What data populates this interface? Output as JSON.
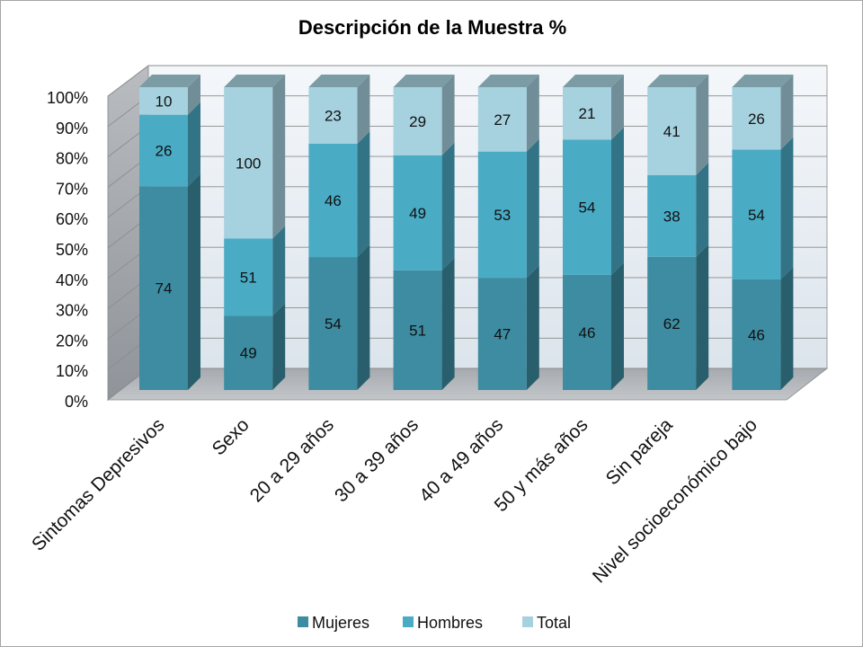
{
  "chart_data": {
    "type": "bar",
    "stacking": "percent",
    "title": "Descripción de la Muestra %",
    "categories": [
      "Sintomas Depresivos",
      "Sexo",
      "20 a 29 años",
      "30 a 39 años",
      "40 a 49 años",
      "50 y más años",
      "Sin pareja",
      "Nivel socioeconómico bajo"
    ],
    "series": [
      {
        "name": "Mujeres",
        "values": [
          74,
          49,
          54,
          51,
          47,
          46,
          62,
          46
        ],
        "color": "#3d8ca1"
      },
      {
        "name": "Hombres",
        "values": [
          26,
          51,
          46,
          49,
          53,
          54,
          38,
          54
        ],
        "color": "#4aabc5"
      },
      {
        "name": "Total",
        "values": [
          10,
          100,
          23,
          29,
          27,
          21,
          41,
          26
        ],
        "color": "#a6d1df"
      }
    ],
    "ylim": [
      0,
      100
    ],
    "yticks": [
      "0%",
      "10%",
      "20%",
      "30%",
      "40%",
      "50%",
      "60%",
      "70%",
      "80%",
      "90%",
      "100%"
    ],
    "data_labels": true,
    "grid": true,
    "legend": "bottom"
  }
}
